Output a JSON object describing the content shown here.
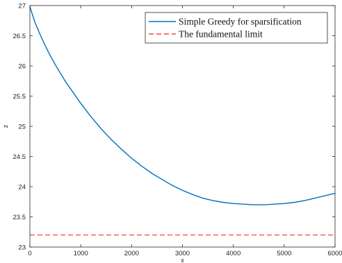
{
  "chart_data": {
    "type": "line",
    "xlabel": "x",
    "ylabel": "z",
    "xlim": [
      0,
      6000
    ],
    "ylim": [
      23,
      27
    ],
    "xticks": [
      0,
      1000,
      2000,
      3000,
      4000,
      5000,
      6000
    ],
    "yticks": [
      23,
      23.5,
      24,
      24.5,
      25,
      25.5,
      26,
      26.5,
      27
    ],
    "grid": false,
    "legend_position": "top-right",
    "series": [
      {
        "name": "Simple Greedy for sparsification",
        "style": "solid",
        "color": "#0072BD",
        "x": [
          0,
          100,
          200,
          300,
          400,
          500,
          600,
          700,
          800,
          1000,
          1200,
          1400,
          1600,
          1800,
          2000,
          2200,
          2400,
          2600,
          2800,
          3000,
          3200,
          3400,
          3600,
          3800,
          4000,
          4200,
          4400,
          4500,
          4600,
          4800,
          5000,
          5200,
          5400,
          5600,
          5800,
          6000
        ],
        "y": [
          26.98,
          26.72,
          26.52,
          26.34,
          26.17,
          26.02,
          25.88,
          25.74,
          25.62,
          25.38,
          25.16,
          24.96,
          24.78,
          24.62,
          24.47,
          24.34,
          24.22,
          24.12,
          24.02,
          23.94,
          23.87,
          23.81,
          23.77,
          23.74,
          23.72,
          23.71,
          23.7,
          23.7,
          23.7,
          23.71,
          23.72,
          23.74,
          23.77,
          23.81,
          23.85,
          23.89
        ]
      },
      {
        "name": "The fundamental limit",
        "style": "dashed",
        "color": "#FF4040",
        "x": [
          0,
          6000
        ],
        "y": [
          23.2,
          23.2
        ]
      }
    ]
  }
}
